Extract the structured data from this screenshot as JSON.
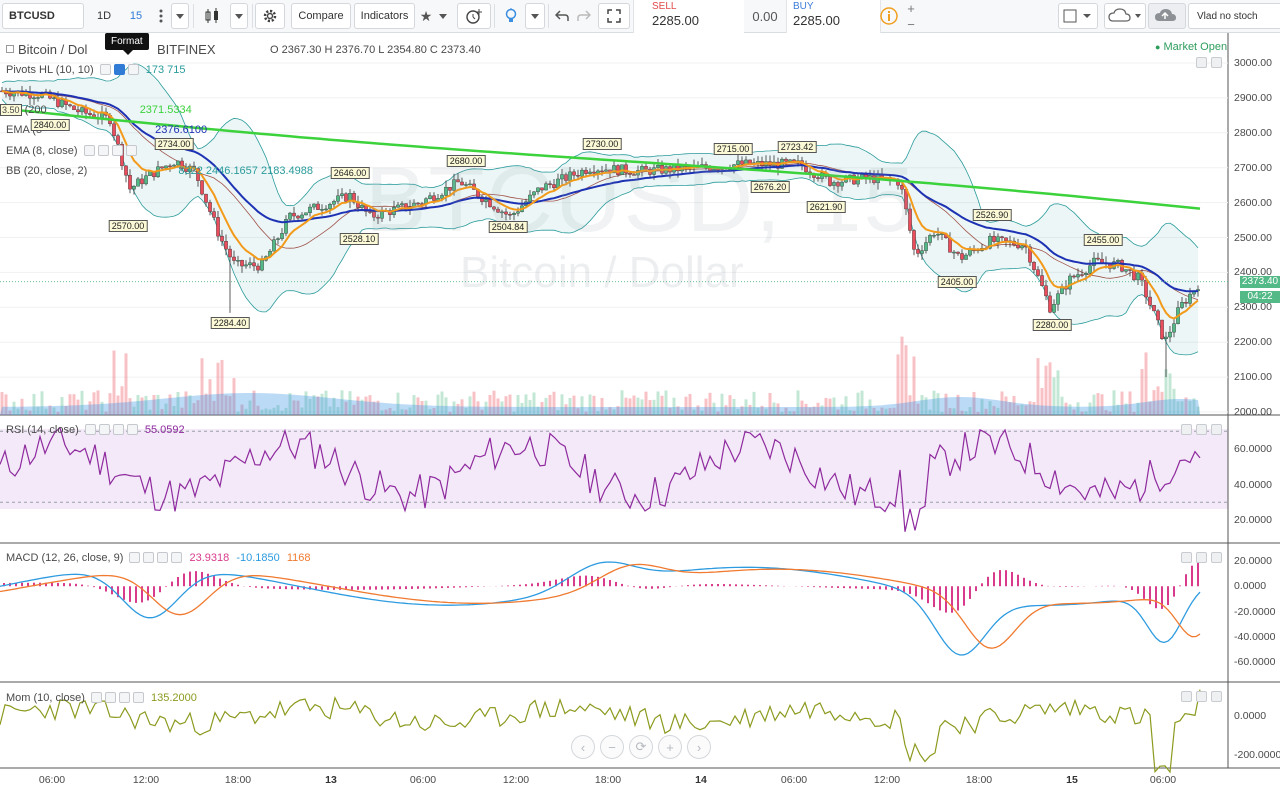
{
  "toolbar": {
    "symbol": "BTCUSD",
    "interval_1d": "1D",
    "interval_15": "15",
    "compare": "Compare",
    "indicators": "Indicators",
    "sell_label": "SELL",
    "sell_value": "2285.00",
    "spread": "0.00",
    "buy_label": "BUY",
    "buy_value": "2285.00",
    "user": "Vlad no stoch"
  },
  "tooltip": "Format",
  "main_pane": {
    "title": "Bitcoin / Dol",
    "exchange": "BITFINEX",
    "ohlc": {
      "o_label": "O",
      "o": "2367.30",
      "h_label": "H",
      "h": "2376.70",
      "l_label": "L",
      "l": "2354.80",
      "c_label": "C",
      "c": "2373.40"
    },
    "market_status": "Market Open",
    "watermark_symbol": "BTCUSD, 15",
    "watermark_name": "Bitcoin / Dollar",
    "indicators": [
      {
        "name": "Pivots HL (10, 10)",
        "value": "173  715",
        "color": "#2b9b9b"
      },
      {
        "name": "(200",
        "prefix_value": "3.50",
        "value": "2371.5334",
        "color": "#3cd23c"
      },
      {
        "name": "EMA (5",
        "value": "2376.6100",
        "color": "#1e32b4"
      },
      {
        "name": "EMA (8, close)",
        "value": "",
        "color": "#f39a1a"
      },
      {
        "name": "BB (20, close, 2)",
        "value": "8322  2446.1657  2183.4988",
        "color": "#2b9b9b"
      }
    ],
    "last_price": "2373.40",
    "countdown": "04:22",
    "price_axis": [
      "3000.00",
      "2900.00",
      "2800.00",
      "2700.00",
      "2600.00",
      "2500.00",
      "2400.00",
      "2300.00",
      "2200.00",
      "2100.00",
      "2000.00"
    ],
    "pivot_flags": [
      {
        "label": "2840.00",
        "kind": "high"
      },
      {
        "label": "2734.00",
        "kind": "high"
      },
      {
        "label": "2570.00",
        "kind": "low"
      },
      {
        "label": "2284.40",
        "kind": "low"
      },
      {
        "label": "2646.00",
        "kind": "high"
      },
      {
        "label": "2528.10",
        "kind": "low"
      },
      {
        "label": "2680.00",
        "kind": "high"
      },
      {
        "label": "2504.84",
        "kind": "low"
      },
      {
        "label": "2730.00",
        "kind": "high"
      },
      {
        "label": "2715.00",
        "kind": "high"
      },
      {
        "label": "2676.20",
        "kind": "low"
      },
      {
        "label": "2723.42",
        "kind": "high"
      },
      {
        "label": "2621.90",
        "kind": "low"
      },
      {
        "label": "2526.90",
        "kind": "high"
      },
      {
        "label": "2405.00",
        "kind": "low"
      },
      {
        "label": "2280.00",
        "kind": "low"
      },
      {
        "label": "2455.00",
        "kind": "high"
      }
    ]
  },
  "rsi_pane": {
    "name": "RSI (14, close)",
    "value": "55.0592",
    "color": "#8e2a9e",
    "axis": [
      "60.0000",
      "40.0000",
      "20.0000"
    ]
  },
  "macd_pane": {
    "name": "MACD (12, 26, close, 9)",
    "macd": "23.9318",
    "signal": "-10.1850",
    "hist": "1168",
    "axis": [
      "20.0000",
      "0.0000",
      "-20.0000",
      "-40.0000",
      "-60.0000"
    ]
  },
  "mom_pane": {
    "name": "Mom (10, close)",
    "value": "135.2000",
    "color": "#8c9a1e",
    "axis": [
      "0.0000",
      "-200.0000"
    ]
  },
  "time_axis": [
    {
      "label": "06:00",
      "bold": false
    },
    {
      "label": "12:00",
      "bold": false
    },
    {
      "label": "18:00",
      "bold": false
    },
    {
      "label": "13",
      "bold": true
    },
    {
      "label": "06:00",
      "bold": false
    },
    {
      "label": "12:00",
      "bold": false
    },
    {
      "label": "18:00",
      "bold": false
    },
    {
      "label": "14",
      "bold": true
    },
    {
      "label": "06:00",
      "bold": false
    },
    {
      "label": "12:00",
      "bold": false
    },
    {
      "label": "18:00",
      "bold": false
    },
    {
      "label": "15",
      "bold": true
    },
    {
      "label": "06:00",
      "bold": false
    }
  ],
  "colors": {
    "up": "#53b987",
    "down": "#eb4d5c",
    "sma200": "#3cd23c",
    "ema_slow": "#1e32b4",
    "ema_fast": "#f39a1a",
    "bb": "#2b9b9b",
    "rsi": "#8e2a9e",
    "macd_line": "#2d9be0",
    "signal_line": "#f07a30",
    "hist": "#d93b8c",
    "mom": "#8c9a1e"
  }
}
